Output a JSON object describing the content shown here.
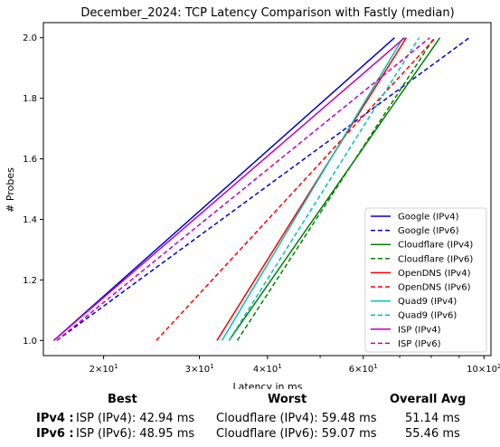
{
  "chart_data": {
    "type": "line",
    "title": "December_2024: TCP Latency Comparison with Fastly (median)",
    "xlabel": "Latency in ms",
    "ylabel": "# Probes",
    "xscale": "log",
    "xlim": [
      15.5,
      103
    ],
    "ylim": [
      0.95,
      2.05
    ],
    "yticks": [
      "1.0",
      "1.2",
      "1.4",
      "1.6",
      "1.8",
      "2.0"
    ],
    "xticks": [
      {
        "value": 20,
        "base": "2",
        "exp": "1"
      },
      {
        "value": 30,
        "base": "3",
        "exp": "1"
      },
      {
        "value": 40,
        "base": "4",
        "exp": "1"
      },
      {
        "value": 60,
        "base": "6",
        "exp": "1"
      },
      {
        "value": 100,
        "base": "10",
        "exp": "2"
      }
    ],
    "grid": false,
    "legend_position": "lower-right",
    "series": [
      {
        "name": "Google (IPv4)",
        "color": "#0000cc",
        "dash": "solid",
        "x": [
          16.2,
          68.5
        ],
        "y": [
          1,
          2
        ]
      },
      {
        "name": "Google (IPv6)",
        "color": "#0000cc",
        "dash": "dashed",
        "x": [
          16.4,
          94.0
        ],
        "y": [
          1,
          2
        ]
      },
      {
        "name": "Cloudflare (IPv4)",
        "color": "#008000",
        "dash": "solid",
        "x": [
          34.0,
          83.0
        ],
        "y": [
          1,
          2
        ]
      },
      {
        "name": "Cloudflare (IPv6)",
        "color": "#008000",
        "dash": "dashed",
        "x": [
          35.2,
          81.0
        ],
        "y": [
          1,
          2
        ]
      },
      {
        "name": "OpenDNS (IPv4)",
        "color": "#ff0000",
        "dash": "solid",
        "x": [
          32.3,
          72.0
        ],
        "y": [
          1,
          2
        ]
      },
      {
        "name": "OpenDNS (IPv6)",
        "color": "#ff0000",
        "dash": "dashed",
        "x": [
          25.0,
          81.5
        ],
        "y": [
          1,
          2
        ]
      },
      {
        "name": "Quad9 (IPv4)",
        "color": "#00bfbf",
        "dash": "solid",
        "x": [
          33.0,
          71.0
        ],
        "y": [
          1,
          2
        ]
      },
      {
        "name": "Quad9 (IPv6)",
        "color": "#00bfbf",
        "dash": "dashed",
        "x": [
          34.0,
          76.0
        ],
        "y": [
          1,
          2
        ]
      },
      {
        "name": "ISP (IPv4)",
        "color": "#bf00bf",
        "dash": "solid",
        "x": [
          16.2,
          71.5
        ],
        "y": [
          1,
          2
        ]
      },
      {
        "name": "ISP (IPv6)",
        "color": "#bf00bf",
        "dash": "dashed",
        "x": [
          16.4,
          79.5
        ],
        "y": [
          1,
          2
        ]
      }
    ]
  },
  "summary": {
    "headers": {
      "best": "Best",
      "worst": "Worst",
      "avg": "Overall Avg"
    },
    "rows": [
      {
        "label": "IPv4 :",
        "best": "ISP (IPv4): 42.94 ms",
        "worst": "Cloudflare (IPv4): 59.48 ms",
        "avg": "51.14 ms"
      },
      {
        "label": "IPv6 :",
        "best": "ISP (IPv6): 48.95 ms",
        "worst": "Cloudflare (IPv6): 59.07 ms",
        "avg": "55.46 ms"
      }
    ]
  }
}
